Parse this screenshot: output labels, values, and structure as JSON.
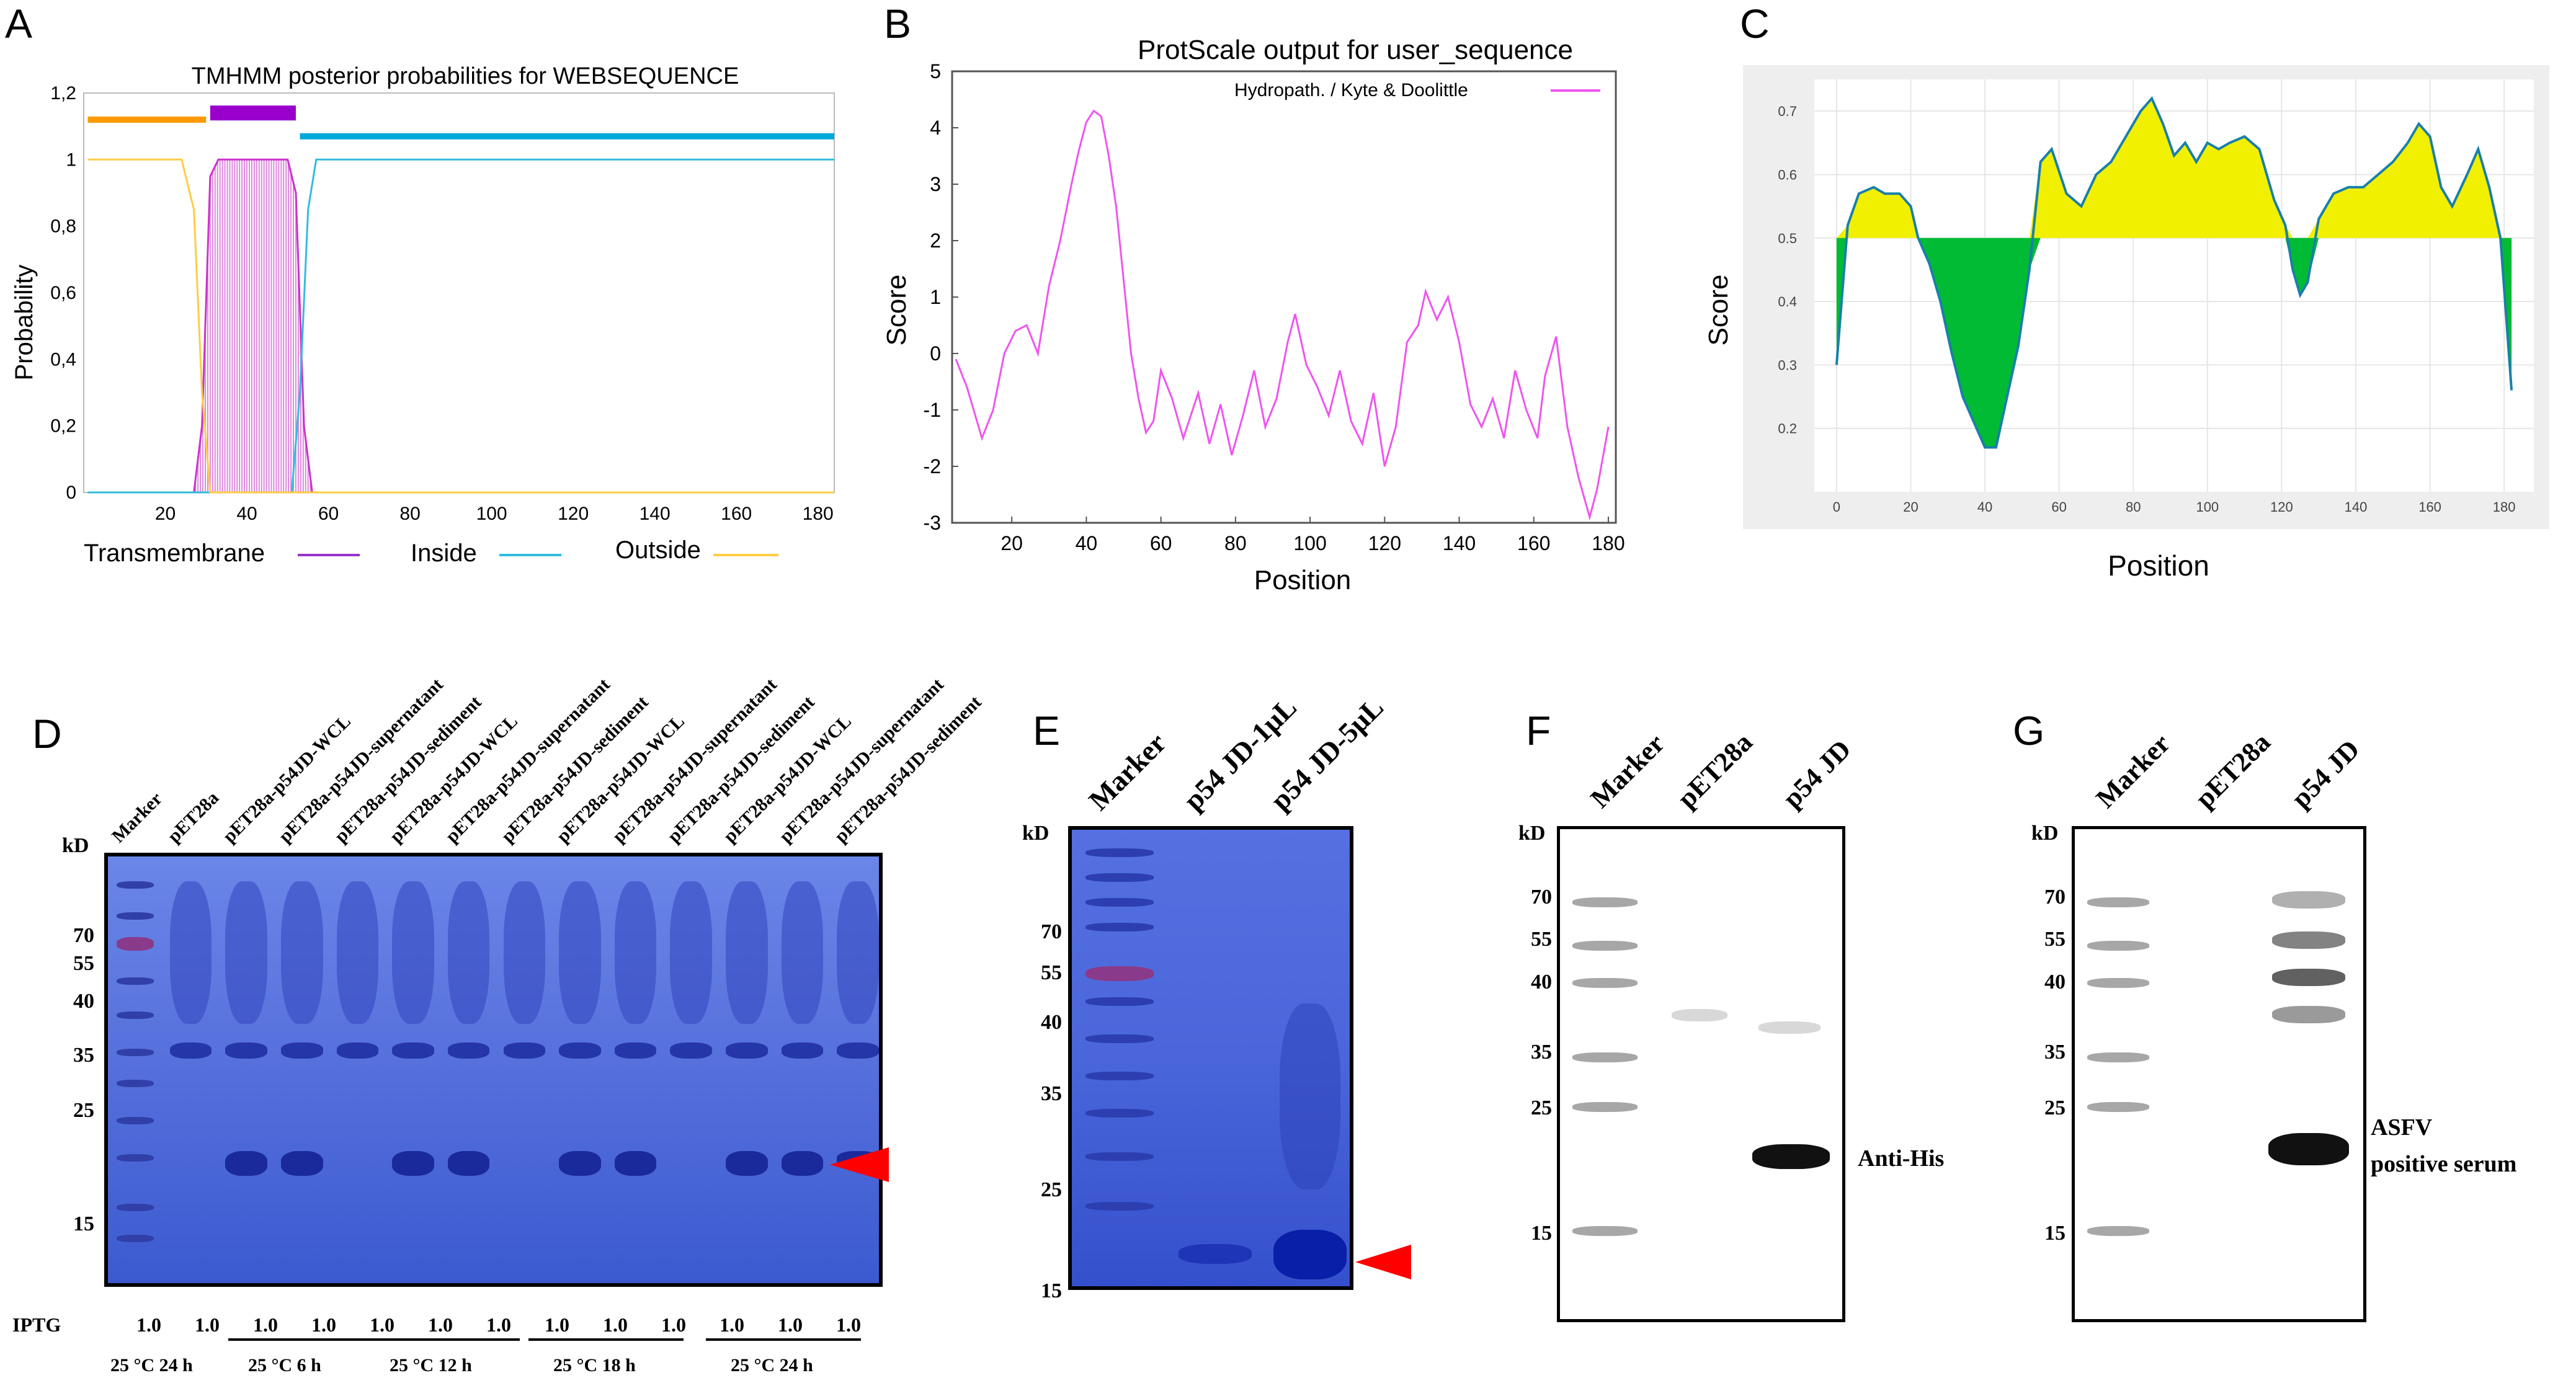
{
  "panels": {
    "A": {
      "letter": "A",
      "title": "TMHMM  posterior probabilities for WEBSEQUENCE",
      "ylabel": "Probability",
      "legend": [
        "Transmembrane",
        "Inside",
        "Outside"
      ]
    },
    "B": {
      "letter": "B",
      "title": "ProtScale output for  user_sequence",
      "ylabel": "Score",
      "xlabel": "Position",
      "legend": "Hydropath. / Kyte & Doolittle"
    },
    "C": {
      "letter": "C",
      "ylabel": "Score",
      "xlabel": "Position"
    },
    "D": {
      "letter": "D",
      "kd": "kD",
      "lanes": [
        "Marker",
        "pET28a",
        "pET28a-p54JD-WCL",
        "pET28a-p54JD-supernatant",
        "pET28a-p54JD-sediment",
        "pET28a-p54JD-WCL",
        "pET28a-p54JD-supernatant",
        "pET28a-p54JD-sediment",
        "pET28a-p54JD-WCL",
        "pET28a-p54JD-supernatant",
        "pET28a-p54JD-sediment",
        "pET28a-p54JD-WCL",
        "pET28a-p54JD-supernatant",
        "pET28a-p54JD-sediment"
      ],
      "markers": [
        "70",
        "55",
        "40",
        "35",
        "25",
        "15"
      ],
      "iptg_label": "IPTG",
      "iptg_values": [
        "1.0",
        "1.0",
        "1.0",
        "1.0",
        "1.0",
        "1.0",
        "1.0",
        "1.0",
        "1.0",
        "1.0",
        "1.0",
        "1.0",
        "1.0"
      ],
      "conditions": [
        "25 °C 24 h",
        "25 °C 6 h",
        "25 °C 12 h",
        "25 °C 18 h",
        "25 °C 24 h"
      ]
    },
    "E": {
      "letter": "E",
      "kd": "kD",
      "lanes": [
        "Marker",
        "p54 JD-1μL",
        "p54 JD-5μL"
      ],
      "markers": [
        "70",
        "55",
        "40",
        "35",
        "25",
        "15"
      ]
    },
    "F": {
      "letter": "F",
      "kd": "kD",
      "lanes": [
        "Marker",
        "pET28a",
        "p54 JD"
      ],
      "markers": [
        "70",
        "55",
        "40",
        "35",
        "25",
        "15"
      ],
      "antibody": "Anti-His"
    },
    "G": {
      "letter": "G",
      "kd": "kD",
      "lanes": [
        "Marker",
        "pET28a",
        "p54 JD"
      ],
      "markers": [
        "70",
        "55",
        "40",
        "35",
        "25",
        "15"
      ],
      "antibody_line1": "ASFV",
      "antibody_line2": "positive  serum"
    }
  },
  "chart_data": [
    {
      "panel": "A",
      "type": "line",
      "title": "TMHMM  posterior probabilities for WEBSEQUENCE",
      "xlabel": "",
      "ylabel": "Probability",
      "xlim": [
        0,
        184
      ],
      "ylim": [
        0,
        1.2
      ],
      "x_ticks": [
        "20",
        "40",
        "60",
        "80",
        "100",
        "120",
        "140",
        "160",
        "180"
      ],
      "y_ticks": [
        "0",
        "0,2",
        "0,4",
        "0,6",
        "0,8",
        "1",
        "1,2"
      ],
      "topology": [
        {
          "label": "Outside",
          "start": 1,
          "end": 30,
          "color": "#ff9900"
        },
        {
          "label": "Transmembrane",
          "start": 31,
          "end": 52,
          "color": "#9900cc"
        },
        {
          "label": "Inside",
          "start": 53,
          "end": 184,
          "color": "#00a8d8"
        }
      ],
      "series": [
        {
          "name": "Transmembrane",
          "color": "#cc33cc",
          "x": [
            1,
            27,
            29,
            31,
            33,
            50,
            52,
            54,
            56,
            184
          ],
          "y": [
            0,
            0,
            0.2,
            0.95,
            1,
            1,
            0.9,
            0.2,
            0,
            0
          ]
        },
        {
          "name": "Inside",
          "color": "#33bbdd",
          "x": [
            1,
            51,
            53,
            55,
            57,
            184
          ],
          "y": [
            0,
            0,
            0.3,
            0.85,
            1,
            1
          ]
        },
        {
          "name": "Outside",
          "color": "#ffcc44",
          "x": [
            1,
            24,
            27,
            29,
            31,
            184
          ],
          "y": [
            1,
            1,
            0.85,
            0.3,
            0,
            0
          ]
        }
      ]
    },
    {
      "panel": "B",
      "type": "line",
      "title": "ProtScale output for  user_sequence",
      "xlabel": "Position",
      "ylabel": "Score",
      "xlim": [
        4,
        182
      ],
      "ylim": [
        -3,
        5
      ],
      "x_ticks": [
        "20",
        "40",
        "60",
        "80",
        "100",
        "120",
        "140",
        "160",
        "180"
      ],
      "y_ticks": [
        "-3",
        "-2",
        "-1",
        "0",
        "1",
        "2",
        "3",
        "4",
        "5"
      ],
      "series": [
        {
          "name": "Hydropath. / Kyte & Doolittle",
          "color": "#ee55ee",
          "x": [
            5,
            8,
            12,
            15,
            18,
            21,
            24,
            27,
            30,
            33,
            36,
            38,
            40,
            42,
            44,
            46,
            48,
            50,
            52,
            54,
            56,
            58,
            60,
            63,
            66,
            70,
            73,
            76,
            79,
            82,
            85,
            88,
            91,
            94,
            96,
            99,
            102,
            105,
            108,
            111,
            114,
            117,
            120,
            123,
            126,
            129,
            131,
            134,
            137,
            140,
            143,
            146,
            149,
            152,
            155,
            158,
            161,
            163,
            166,
            169,
            172,
            175,
            177,
            180
          ],
          "y": [
            -0.1,
            -0.6,
            -1.5,
            -1.0,
            0.0,
            0.4,
            0.5,
            0.0,
            1.2,
            2.0,
            3.0,
            3.6,
            4.1,
            4.3,
            4.2,
            3.5,
            2.6,
            1.3,
            0.0,
            -0.8,
            -1.4,
            -1.2,
            -0.3,
            -0.8,
            -1.5,
            -0.7,
            -1.6,
            -0.9,
            -1.8,
            -1.1,
            -0.3,
            -1.3,
            -0.8,
            0.2,
            0.7,
            -0.2,
            -0.6,
            -1.1,
            -0.3,
            -1.2,
            -1.6,
            -0.7,
            -2.0,
            -1.3,
            0.2,
            0.5,
            1.1,
            0.6,
            1.0,
            0.2,
            -0.9,
            -1.3,
            -0.8,
            -1.5,
            -0.3,
            -1.0,
            -1.5,
            -0.4,
            0.3,
            -1.3,
            -2.2,
            -2.9,
            -2.4,
            -1.3
          ]
        }
      ]
    },
    {
      "panel": "C",
      "type": "area",
      "xlabel": "Position",
      "ylabel": "Score",
      "xlim": [
        -6,
        188
      ],
      "ylim": [
        0.1,
        0.75
      ],
      "threshold": 0.5,
      "x_ticks": [
        "0",
        "20",
        "40",
        "60",
        "80",
        "100",
        "120",
        "140",
        "160",
        "180"
      ],
      "y_ticks": [
        "0.2",
        "0.3",
        "0.4",
        "0.5",
        "0.6",
        "0.7"
      ],
      "colors": {
        "above": "#f0f000",
        "below": "#00bb33",
        "line": "#1a7faa"
      },
      "series": [
        {
          "name": "Score",
          "x": [
            0,
            3,
            6,
            10,
            13,
            17,
            20,
            22,
            25,
            28,
            31,
            34,
            37,
            40,
            43,
            46,
            49,
            52,
            55,
            58,
            62,
            66,
            70,
            74,
            78,
            82,
            85,
            88,
            91,
            94,
            97,
            100,
            103,
            106,
            110,
            114,
            118,
            121,
            123,
            125,
            127,
            130,
            134,
            138,
            142,
            146,
            150,
            154,
            157,
            160,
            163,
            166,
            170,
            173,
            176,
            179,
            182
          ],
          "y": [
            0.3,
            0.52,
            0.57,
            0.58,
            0.57,
            0.57,
            0.55,
            0.5,
            0.46,
            0.4,
            0.32,
            0.25,
            0.21,
            0.17,
            0.17,
            0.25,
            0.33,
            0.45,
            0.62,
            0.64,
            0.57,
            0.55,
            0.6,
            0.62,
            0.66,
            0.7,
            0.72,
            0.68,
            0.63,
            0.65,
            0.62,
            0.65,
            0.64,
            0.65,
            0.66,
            0.64,
            0.56,
            0.52,
            0.45,
            0.41,
            0.43,
            0.53,
            0.57,
            0.58,
            0.58,
            0.6,
            0.62,
            0.65,
            0.68,
            0.66,
            0.58,
            0.55,
            0.6,
            0.64,
            0.58,
            0.5,
            0.26
          ]
        }
      ]
    }
  ]
}
